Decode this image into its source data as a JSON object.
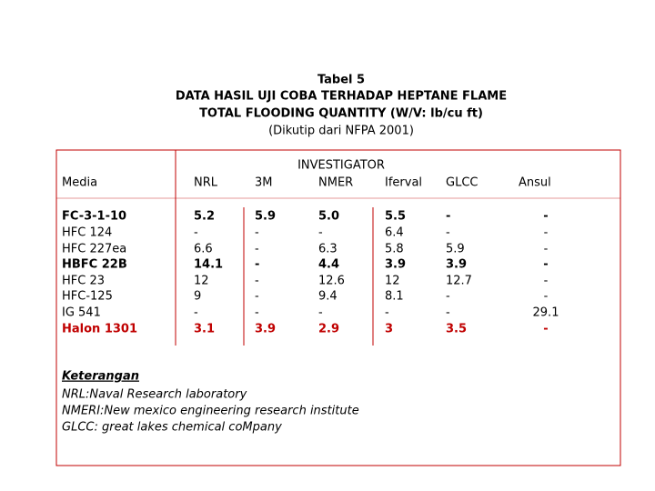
{
  "title": {
    "lines": [
      "Tabel 5",
      "DATA HASIL UJI COBA TERHADAP HEPTANE FLAME",
      "TOTAL FLOODING QUANTITY (W/V: lb/cu ft)",
      "(Dikutip dari NFPA 2001)"
    ]
  },
  "table": {
    "group_header": "INVESTIGATOR",
    "columns": [
      "Media",
      "NRL",
      "3M",
      "NMER",
      "Iferval",
      "GLCC",
      "Ansul"
    ],
    "rows": [
      [
        "FC-3-1-10",
        "5.2",
        "5.9",
        "5.0",
        "5.5",
        "-",
        "-"
      ],
      [
        "HFC 124",
        "-",
        "-",
        "-",
        "6.4",
        "-",
        "-"
      ],
      [
        "HFC 227ea",
        "6.6",
        "-",
        "6.3",
        "5.8",
        "5.9",
        "-"
      ],
      [
        "HBFC 22B",
        "14.1",
        "-",
        "4.4",
        "3.9",
        "3.9",
        "-"
      ],
      [
        "HFC 23",
        "12",
        "-",
        "12.6",
        "12",
        "12.7",
        "-"
      ],
      [
        "HFC-125",
        "9",
        "-",
        "9.4",
        "8.1",
        "-",
        "-"
      ],
      [
        "IG 541",
        "-",
        "-",
        "-",
        "-",
        "-",
        "29.1"
      ],
      [
        "Halon 1301",
        "3.1",
        "3.9",
        "2.9",
        "3",
        "3.5",
        "-"
      ]
    ]
  },
  "notes": {
    "heading": "Keterangan",
    "lines": [
      "NRL:Naval Research laboratory",
      "NMERI:New  mexico engineering research institute",
      "GLCC: great lakes chemical coMpany"
    ]
  }
}
